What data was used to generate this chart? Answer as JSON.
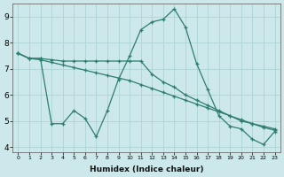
{
  "xlabel": "Humidex (Indice chaleur)",
  "x": [
    0,
    1,
    2,
    3,
    4,
    5,
    6,
    7,
    8,
    9,
    10,
    11,
    12,
    13,
    14,
    15,
    16,
    17,
    18,
    19,
    20,
    21,
    22,
    23
  ],
  "line1": [
    7.6,
    7.4,
    7.4,
    4.9,
    4.9,
    5.4,
    5.1,
    4.4,
    5.4,
    6.6,
    7.5,
    8.5,
    8.8,
    8.9,
    9.3,
    8.6,
    7.2,
    6.2,
    5.2,
    4.8,
    4.7,
    4.3,
    4.1,
    4.6
  ],
  "line2": [
    7.6,
    7.4,
    7.4,
    7.35,
    7.3,
    7.3,
    7.3,
    7.3,
    7.3,
    7.3,
    7.3,
    7.3,
    6.8,
    6.5,
    6.3,
    6.0,
    5.8,
    5.6,
    5.4,
    5.2,
    5.0,
    4.9,
    4.8,
    4.7
  ],
  "line3": [
    7.6,
    7.4,
    7.35,
    7.25,
    7.15,
    7.05,
    6.95,
    6.85,
    6.75,
    6.65,
    6.55,
    6.4,
    6.25,
    6.1,
    5.95,
    5.8,
    5.65,
    5.5,
    5.35,
    5.2,
    5.05,
    4.9,
    4.75,
    4.65
  ],
  "color": "#2e7d6e",
  "bg_color": "#cce8ea",
  "grid_color": "#a8d0d2",
  "ylim": [
    3.8,
    9.5
  ],
  "yticks": [
    4,
    5,
    6,
    7,
    8,
    9
  ],
  "xlim": [
    -0.5,
    23.5
  ]
}
